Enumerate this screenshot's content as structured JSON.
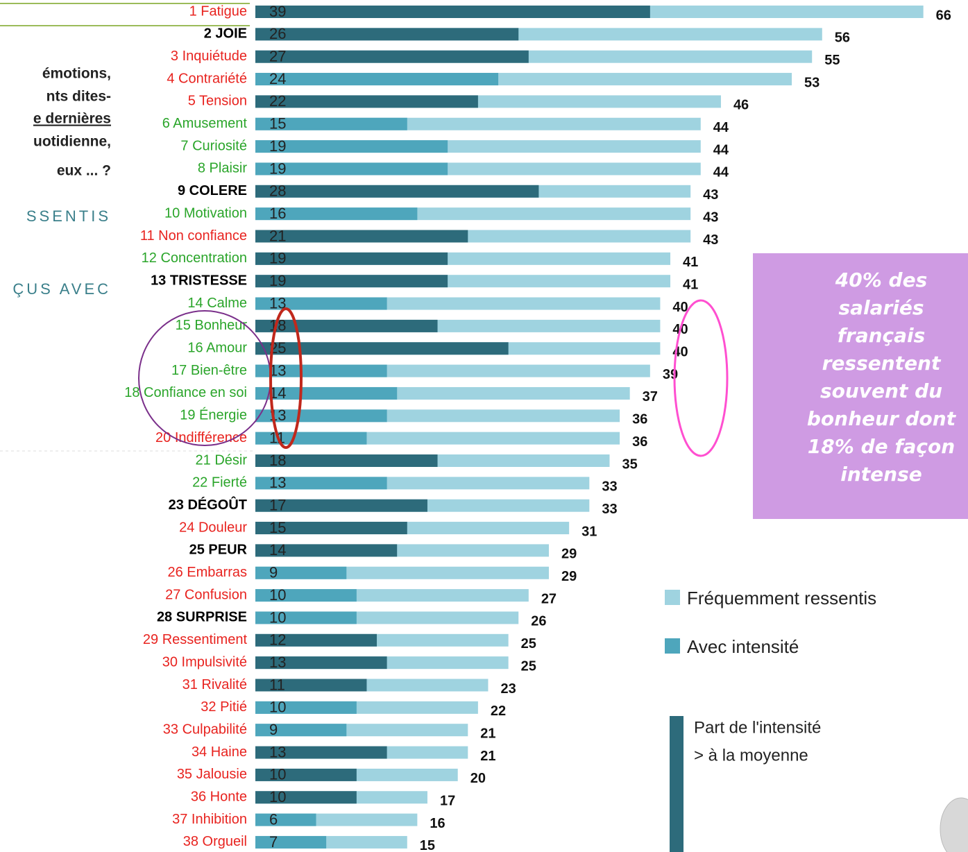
{
  "chart_data": {
    "type": "bar",
    "orientation": "horizontal",
    "categories": [
      "1 Fatigue",
      "2 JOIE",
      "3 Inquiétude",
      "4 Contrariété",
      "5 Tension",
      "6 Amusement",
      "7 Curiosité",
      "8 Plaisir",
      "9 COLERE",
      "10 Motivation",
      "11 Non confiance",
      "12 Concentration",
      "13 TRISTESSE",
      "14 Calme",
      "15 Bonheur",
      "16 Amour",
      "17 Bien-être",
      "18 Confiance en soi",
      "19 Énergie",
      "20 Indifférence",
      "21 Désir",
      "22 Fierté",
      "23 DÉGOÛT",
      "24 Douleur",
      "25 PEUR",
      "26 Embarras",
      "27 Confusion",
      "28 SURPRISE",
      "29 Ressentiment",
      "30 Impulsivité",
      "31 Rivalité",
      "32 Pitié",
      "33 Culpabilité",
      "34 Haine",
      "35 Jalousie",
      "36 Honte",
      "37 Inhibition",
      "38 Orgueil"
    ],
    "label_colors": [
      "#e8231f",
      "#000000",
      "#e8231f",
      "#e8231f",
      "#e8231f",
      "#2aa52a",
      "#2aa52a",
      "#2aa52a",
      "#000000",
      "#2aa52a",
      "#e8231f",
      "#2aa52a",
      "#000000",
      "#2aa52a",
      "#2aa52a",
      "#2aa52a",
      "#2aa52a",
      "#2aa52a",
      "#2aa52a",
      "#e8231f",
      "#2aa52a",
      "#2aa52a",
      "#000000",
      "#e8231f",
      "#000000",
      "#e8231f",
      "#e8231f",
      "#000000",
      "#e8231f",
      "#e8231f",
      "#e8231f",
      "#e8231f",
      "#e8231f",
      "#e8231f",
      "#e8231f",
      "#e8231f",
      "#e8231f",
      "#e8231f"
    ],
    "series": [
      {
        "name": "Fréquemment ressentis",
        "color": "#9fd3e0",
        "values": [
          66,
          56,
          55,
          53,
          46,
          44,
          44,
          44,
          43,
          43,
          43,
          41,
          41,
          40,
          40,
          40,
          39,
          37,
          36,
          36,
          35,
          33,
          33,
          31,
          29,
          29,
          27,
          26,
          25,
          25,
          23,
          22,
          21,
          21,
          20,
          17,
          16,
          15
        ]
      },
      {
        "name": "Avec intensité",
        "color": "#4ea6bc",
        "values": [
          39,
          26,
          27,
          24,
          22,
          15,
          19,
          19,
          28,
          16,
          21,
          19,
          19,
          13,
          18,
          25,
          13,
          14,
          13,
          11,
          18,
          13,
          17,
          15,
          14,
          9,
          10,
          10,
          12,
          13,
          11,
          10,
          9,
          13,
          10,
          10,
          6,
          7
        ],
        "colors": [
          "#2d6b7b",
          "#2d6b7b",
          "#2d6b7b",
          "#4ea6bc",
          "#2d6b7b",
          "#4ea6bc",
          "#4ea6bc",
          "#4ea6bc",
          "#2d6b7b",
          "#4ea6bc",
          "#2d6b7b",
          "#2d6b7b",
          "#2d6b7b",
          "#4ea6bc",
          "#2d6b7b",
          "#2d6b7b",
          "#4ea6bc",
          "#4ea6bc",
          "#4ea6bc",
          "#4ea6bc",
          "#2d6b7b",
          "#4ea6bc",
          "#2d6b7b",
          "#2d6b7b",
          "#2d6b7b",
          "#4ea6bc",
          "#4ea6bc",
          "#4ea6bc",
          "#2d6b7b",
          "#2d6b7b",
          "#2d6b7b",
          "#4ea6bc",
          "#4ea6bc",
          "#2d6b7b",
          "#2d6b7b",
          "#2d6b7b",
          "#4ea6bc",
          "#4ea6bc"
        ]
      }
    ],
    "xlim": [
      0,
      70
    ],
    "legend_note": {
      "lines": [
        "Part de l'intensité",
        "> à la moyenne"
      ],
      "color": "#2d6b7b"
    },
    "callout": [
      "40% des",
      "salariés",
      "français",
      "ressentent",
      "souvent du",
      "bonheur dont",
      "18% de façon",
      "intense"
    ],
    "side_text": [
      "émotions,",
      "nts dites-",
      "e dernières",
      "uotidienne,",
      "eux ... ?"
    ],
    "side_headings": [
      "SSENTIS",
      "ÇUS AVEC"
    ]
  }
}
